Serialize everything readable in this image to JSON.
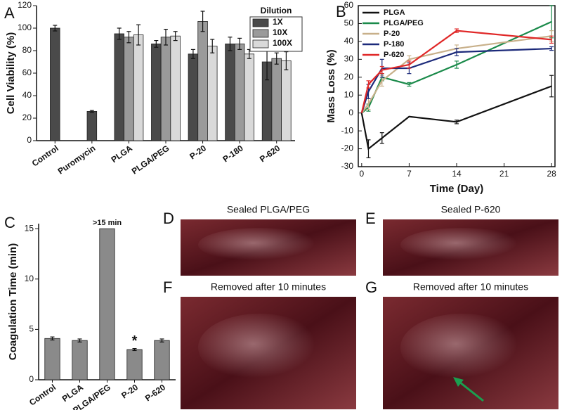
{
  "chart_data": [
    {
      "type": "bar",
      "panel": "A",
      "ylabel": "Cell Viability (%)",
      "categories": [
        "Control",
        "Puromycin",
        "PLGA",
        "PLGA/PEG",
        "P-20",
        "P-180",
        "P-620"
      ],
      "series": [
        {
          "name": "1X",
          "color": "#4a4a4a",
          "values": [
            100,
            26,
            95,
            86,
            77,
            86,
            70
          ],
          "errors": [
            2.5,
            0.8,
            5,
            3,
            4,
            6,
            16
          ]
        },
        {
          "name": "10X",
          "color": "#9a9a9a",
          "values": [
            null,
            null,
            92,
            92,
            106,
            86,
            73
          ],
          "errors": [
            null,
            null,
            5,
            7,
            9,
            5,
            5
          ]
        },
        {
          "name": "100X",
          "color": "#d9d9d9",
          "values": [
            null,
            null,
            94,
            93,
            84,
            77,
            71
          ],
          "errors": [
            null,
            null,
            9,
            4,
            6,
            4,
            8
          ]
        }
      ],
      "legend_title": "Dilution",
      "legend": "upper right",
      "ylim": [
        0,
        120
      ],
      "yticks": [
        0,
        20,
        40,
        60,
        80,
        100,
        120
      ]
    },
    {
      "type": "line",
      "panel": "B",
      "xlabel": "Time (Day)",
      "ylabel": "Mass Loss (%)",
      "x": [
        0,
        1,
        3,
        7,
        14,
        28
      ],
      "series": [
        {
          "name": "PLGA",
          "color": "#111111",
          "values": [
            0,
            -20,
            -14,
            -2,
            -5,
            15
          ],
          "errors": [
            0,
            5,
            3,
            0,
            1,
            6
          ]
        },
        {
          "name": "PLGA/PEG",
          "color": "#1a8a4a",
          "values": [
            0,
            3,
            20,
            16,
            27,
            51
          ],
          "errors": [
            0,
            2,
            2,
            1,
            2,
            9
          ]
        },
        {
          "name": "P-20",
          "color": "#c8b08a",
          "values": [
            0,
            5,
            18,
            30,
            36,
            43
          ],
          "errors": [
            0,
            3,
            3,
            2,
            2,
            3
          ]
        },
        {
          "name": "P-180",
          "color": "#1c2a7a",
          "values": [
            0,
            12,
            25,
            25,
            34,
            36
          ],
          "errors": [
            0,
            4,
            5,
            3,
            2,
            1
          ]
        },
        {
          "name": "P-620",
          "color": "#e02828",
          "values": [
            0,
            16,
            24,
            27,
            46,
            41
          ],
          "errors": [
            0,
            2,
            2,
            2,
            1,
            2
          ]
        }
      ],
      "legend": "upper left",
      "xlim": [
        -0.5,
        28.5
      ],
      "xticks": [
        0,
        7,
        14,
        21,
        28
      ],
      "ylim": [
        -30,
        60
      ],
      "yticks": [
        -30,
        -20,
        -10,
        0,
        10,
        20,
        30,
        40,
        50,
        60
      ]
    },
    {
      "type": "bar",
      "panel": "C",
      "ylabel": "Coagulation Time (min)",
      "categories": [
        "Control",
        "PLGA",
        "PLGA/PEG",
        "P-20",
        "P-620"
      ],
      "series": [
        {
          "color": "#8a8a8a",
          "values": [
            4.1,
            3.9,
            15,
            3.0,
            3.9
          ],
          "errors": [
            0.15,
            0.15,
            0,
            0.1,
            0.15
          ]
        }
      ],
      "annotations": [
        {
          "text": ">15 min",
          "x": "PLGA/PEG"
        },
        {
          "text": "*",
          "x": "P-20"
        }
      ],
      "ylim": [
        0,
        15.5
      ],
      "yticks": [
        0,
        5,
        10,
        15
      ]
    }
  ],
  "photos": [
    {
      "panel": "D",
      "caption": "Sealed PLGA/PEG"
    },
    {
      "panel": "E",
      "caption": "Sealed P-620"
    },
    {
      "panel": "F",
      "caption": "Removed after 10 minutes"
    },
    {
      "panel": "G",
      "caption": "Removed after 10 minutes"
    }
  ]
}
